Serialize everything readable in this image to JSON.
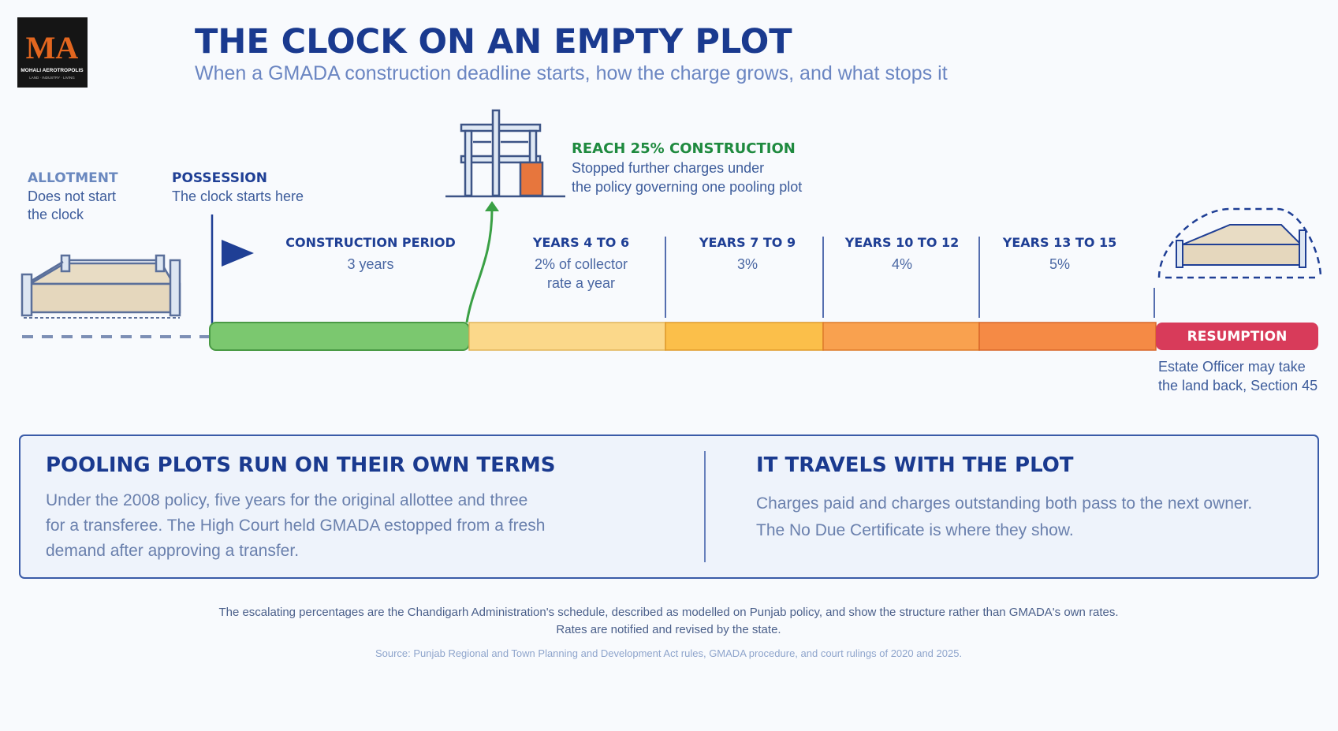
{
  "logo": {
    "mark": "MA",
    "name": "MOHALI AEROTROPOLIS",
    "tagline": "LAND · INDUSTRY · LIVING"
  },
  "header": {
    "title": "THE CLOCK ON AN EMPTY PLOT",
    "subtitle": "When a GMADA construction deadline starts, how the charge grows, and what stops it"
  },
  "timeline": {
    "start_markers": [
      {
        "heading": "ALLOTMENT",
        "lines": [
          "Does not start",
          "the clock"
        ]
      },
      {
        "heading": "POSSESSION",
        "lines": [
          "The clock starts here"
        ]
      }
    ],
    "milestone": {
      "heading": "REACH 25% CONSTRUCTION",
      "lines": [
        "Stopped further charges under",
        "the policy governing one pooling plot"
      ]
    },
    "stages": [
      {
        "heading": "CONSTRUCTION PERIOD",
        "lines": [
          "3 years"
        ]
      },
      {
        "heading": "YEARS 4 TO 6",
        "lines": [
          "2% of collector",
          "rate a year"
        ]
      },
      {
        "heading": "YEARS 7 TO 9",
        "lines": [
          "3%"
        ]
      },
      {
        "heading": "YEARS 10 TO 12",
        "lines": [
          "4%"
        ]
      },
      {
        "heading": "YEARS 13 TO 15",
        "lines": [
          "5%"
        ]
      }
    ],
    "end": {
      "label": "RESUMPTION",
      "lines": [
        "Estate Officer may take",
        "the land back, Section 45"
      ]
    }
  },
  "panels": [
    {
      "heading": "POOLING PLOTS RUN ON THEIR OWN TERMS",
      "lines": [
        "Under the 2008 policy, five years for the original allottee and three",
        "for a transferee. The High Court held GMADA estopped from a fresh",
        "demand after approving a transfer."
      ]
    },
    {
      "heading": "IT TRAVELS WITH THE PLOT",
      "lines": [
        "Charges paid and charges outstanding both pass to the next owner.",
        "The No Due Certificate is where they show."
      ]
    }
  ],
  "footnotes": {
    "notes": [
      "The escalating percentages are the Chandigarh Administration's schedule, described as modelled on Punjab policy, and show the structure rather than GMADA's own rates.",
      "Rates are notified and revised by the state."
    ],
    "source": "Source: Punjab Regional and Town Planning and Development Act rules, GMADA procedure, and court rulings of 2020 and 2025."
  }
}
